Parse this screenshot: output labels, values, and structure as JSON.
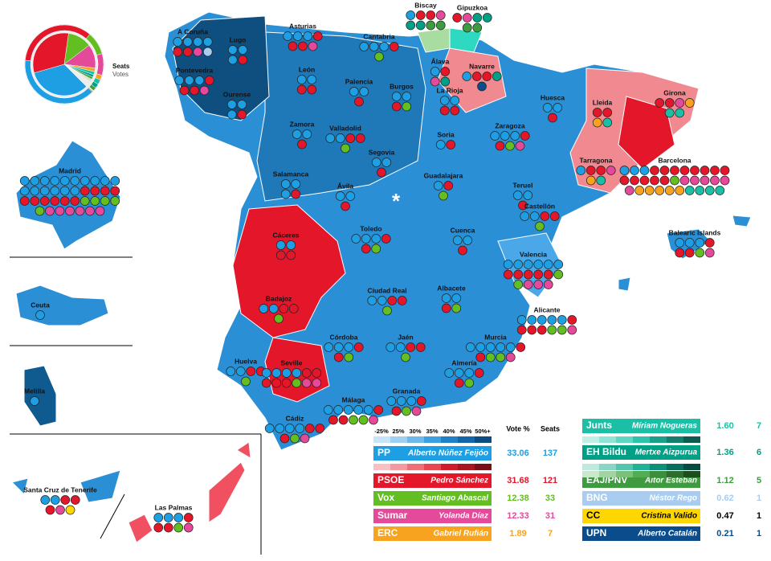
{
  "legend": {
    "seats_label": "Seats",
    "votes_label": "Votes"
  },
  "capital_marker": "*",
  "scale": [
    "-25%",
    "25%",
    "30%",
    "35%",
    "40%",
    "45%",
    "50%+"
  ],
  "table_headers": {
    "votes": "Vote %",
    "seats": "Seats"
  },
  "parties": [
    {
      "abbr": "PP",
      "leader": "Alberto Núñez Feijóo",
      "vote": "33.06",
      "seats": 137,
      "color": "#1e9fe3"
    },
    {
      "abbr": "PSOE",
      "leader": "Pedro Sánchez",
      "vote": "31.68",
      "seats": 121,
      "color": "#e3162a"
    },
    {
      "abbr": "Vox",
      "leader": "Santiago Abascal",
      "vote": "12.38",
      "seats": 33,
      "color": "#63be21"
    },
    {
      "abbr": "Sumar",
      "leader": "Yolanda Díaz",
      "vote": "12.33",
      "seats": 31,
      "color": "#e4499a"
    },
    {
      "abbr": "ERC",
      "leader": "Gabriel Rufián",
      "vote": "1.89",
      "seats": 7,
      "color": "#f7a320"
    },
    {
      "abbr": "Junts",
      "leader": "Míriam Nogueras",
      "vote": "1.60",
      "seats": 7,
      "color": "#1bbfa5"
    },
    {
      "abbr": "EH Bildu",
      "leader": "Mertxe Aizpurua",
      "vote": "1.36",
      "seats": 6,
      "color": "#00a086"
    },
    {
      "abbr": "EAJ/PNV",
      "leader": "Aitor Esteban",
      "vote": "1.12",
      "seats": 5,
      "color": "#3e9b3f"
    },
    {
      "abbr": "BNG",
      "leader": "Néstor Rego",
      "vote": "0.62",
      "seats": 1,
      "color": "#a9cdf0"
    },
    {
      "abbr": "CC",
      "leader": "Cristina Valido",
      "vote": "0.47",
      "seats": 1,
      "color": "#ffd700",
      "ink": "#000000"
    },
    {
      "abbr": "UPN",
      "leader": "Alberto Catalán",
      "vote": "0.21",
      "seats": 1,
      "color": "#0a4c8c"
    }
  ],
  "provinces": [
    {
      "name": "A Coruña",
      "seats": {
        "PP": 4,
        "PSOE": 2,
        "Sumar": 1,
        "BNG": 1
      }
    },
    {
      "name": "Lugo",
      "seats": {
        "PP": 3,
        "PSOE": 1
      }
    },
    {
      "name": "Pontevedra",
      "seats": {
        "PP": 3,
        "PSOE": 3,
        "Sumar": 1
      }
    },
    {
      "name": "Ourense",
      "seats": {
        "PP": 3,
        "PSOE": 1
      }
    },
    {
      "name": "Asturias",
      "seats": {
        "PP": 3,
        "PSOE": 3,
        "Sumar": 1
      }
    },
    {
      "name": "Cantabria",
      "seats": {
        "PP": 3,
        "PSOE": 1,
        "Vox": 1
      }
    },
    {
      "name": "Biscay",
      "seats": {
        "PP": 1,
        "PSOE": 2,
        "Sumar": 1,
        "EH Bildu": 2,
        "EAJ/PNV": 2
      }
    },
    {
      "name": "Gipuzkoa",
      "seats": {
        "PSOE": 1,
        "Sumar": 1,
        "EH Bildu": 2,
        "EAJ/PNV": 2
      }
    },
    {
      "name": "Álava",
      "seats": {
        "PP": 1,
        "PSOE": 1,
        "Sumar": 1,
        "EH Bildu": 1
      }
    },
    {
      "name": "Navarre",
      "seats": {
        "PP": 1,
        "PSOE": 2,
        "EH Bildu": 1,
        "UPN": 1
      }
    },
    {
      "name": "León",
      "seats": {
        "PP": 2,
        "PSOE": 2
      }
    },
    {
      "name": "Palencia",
      "seats": {
        "PP": 2,
        "PSOE": 1
      }
    },
    {
      "name": "Burgos",
      "seats": {
        "PP": 2,
        "PSOE": 1,
        "Vox": 1
      }
    },
    {
      "name": "La Rioja",
      "seats": {
        "PP": 2,
        "PSOE": 2
      }
    },
    {
      "name": "Huesca",
      "seats": {
        "PP": 2,
        "PSOE": 1
      }
    },
    {
      "name": "Lleida",
      "seats": {
        "PSOE": 2,
        "ERC": 1,
        "Junts": 1
      }
    },
    {
      "name": "Girona",
      "seats": {
        "PSOE": 2,
        "ERC": 1,
        "Junts": 2,
        "Sumar": 1
      }
    },
    {
      "name": "Zamora",
      "seats": {
        "PP": 2,
        "PSOE": 1
      }
    },
    {
      "name": "Valladolid",
      "seats": {
        "PP": 2,
        "PSOE": 2,
        "Vox": 1
      }
    },
    {
      "name": "Soria",
      "seats": {
        "PP": 1,
        "PSOE": 1
      }
    },
    {
      "name": "Zaragoza",
      "seats": {
        "PP": 3,
        "PSOE": 2,
        "Vox": 1,
        "Sumar": 1
      }
    },
    {
      "name": "Barcelona",
      "seats": {
        "PP": 3,
        "PSOE": 13,
        "Vox": 1,
        "Sumar": 6,
        "ERC": 5,
        "Junts": 4
      }
    },
    {
      "name": "Segovia",
      "seats": {
        "PP": 2,
        "PSOE": 1
      }
    },
    {
      "name": "Salamanca",
      "seats": {
        "PP": 3,
        "PSOE": 1
      }
    },
    {
      "name": "Tarragona",
      "seats": {
        "PP": 1,
        "PSOE": 2,
        "Sumar": 1,
        "ERC": 1,
        "Junts": 1
      }
    },
    {
      "name": "Guadalajara",
      "seats": {
        "PP": 1,
        "PSOE": 1,
        "Vox": 1
      }
    },
    {
      "name": "Ávila",
      "seats": {
        "PP": 2,
        "PSOE": 1
      }
    },
    {
      "name": "Teruel",
      "seats": {
        "PP": 2,
        "PSOE": 1
      }
    },
    {
      "name": "Madrid",
      "seats": {
        "PP": 16,
        "PSOE": 10,
        "Vox": 5,
        "Sumar": 6
      }
    },
    {
      "name": "Castellón",
      "seats": {
        "PP": 2,
        "PSOE": 2,
        "Vox": 1
      }
    },
    {
      "name": "Balearic Islands",
      "seats": {
        "PP": 3,
        "PSOE": 3,
        "Vox": 1,
        "Sumar": 1
      }
    },
    {
      "name": "Cáceres",
      "seats": {
        "PP": 2,
        "PSOE": 2
      }
    },
    {
      "name": "Toledo",
      "seats": {
        "PP": 3,
        "PSOE": 2,
        "Vox": 1
      }
    },
    {
      "name": "Cuenca",
      "seats": {
        "PP": 2,
        "PSOE": 1
      }
    },
    {
      "name": "Valencia",
      "seats": {
        "PP": 6,
        "PSOE": 5,
        "Vox": 2,
        "Sumar": 3
      }
    },
    {
      "name": "Ceuta",
      "seats": {
        "PP": 1
      }
    },
    {
      "name": "Badajoz",
      "seats": {
        "PP": 2,
        "PSOE": 2,
        "Vox": 1
      }
    },
    {
      "name": "Ciudad Real",
      "seats": {
        "PP": 2,
        "PSOE": 2,
        "Vox": 1
      }
    },
    {
      "name": "Albacete",
      "seats": {
        "PP": 2,
        "PSOE": 1,
        "Vox": 1
      }
    },
    {
      "name": "Alicante",
      "seats": {
        "PP": 5,
        "PSOE": 4,
        "Vox": 2,
        "Sumar": 1
      }
    },
    {
      "name": "Melilla",
      "seats": {
        "PP": 1
      }
    },
    {
      "name": "Huelva",
      "seats": {
        "PP": 2,
        "PSOE": 2,
        "Vox": 1
      }
    },
    {
      "name": "Córdoba",
      "seats": {
        "PP": 3,
        "PSOE": 2,
        "Vox": 1
      }
    },
    {
      "name": "Jaén",
      "seats": {
        "PP": 2,
        "PSOE": 2,
        "Vox": 1
      }
    },
    {
      "name": "Murcia",
      "seats": {
        "PP": 5,
        "PSOE": 2,
        "Vox": 2,
        "Sumar": 1
      }
    },
    {
      "name": "Seville",
      "seats": {
        "PP": 4,
        "PSOE": 5,
        "Vox": 1,
        "Sumar": 2
      }
    },
    {
      "name": "Granada",
      "seats": {
        "PP": 3,
        "PSOE": 2,
        "Vox": 1,
        "Sumar": 1
      }
    },
    {
      "name": "Almería",
      "seats": {
        "PP": 3,
        "PSOE": 2,
        "Vox": 1
      }
    },
    {
      "name": "Málaga",
      "seats": {
        "PP": 5,
        "PSOE": 3,
        "Vox": 2,
        "Sumar": 1
      }
    },
    {
      "name": "Cádiz",
      "seats": {
        "PP": 4,
        "PSOE": 3,
        "Vox": 1,
        "Sumar": 1
      }
    },
    {
      "name": "Santa Cruz de Tenerife",
      "seats": {
        "PP": 2,
        "PSOE": 3,
        "Sumar": 1,
        "CC": 1
      }
    },
    {
      "name": "Las Palmas",
      "seats": {
        "PP": 3,
        "PSOE": 3,
        "Vox": 1,
        "Sumar": 1
      }
    }
  ]
}
